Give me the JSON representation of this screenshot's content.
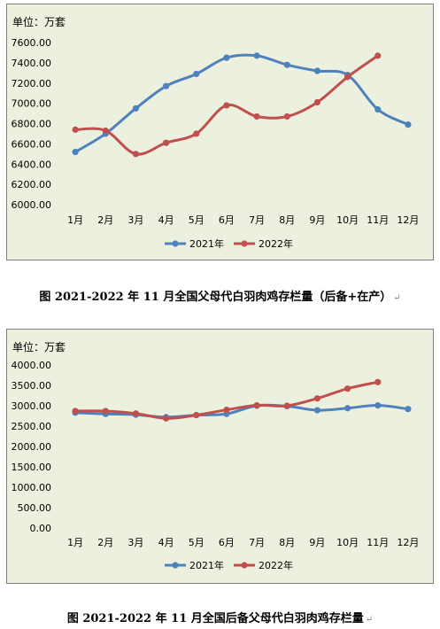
{
  "chart_data": [
    {
      "type": "line",
      "unit_label": "单位：万套",
      "categories": [
        "1月",
        "2月",
        "3月",
        "4月",
        "5月",
        "6月",
        "7月",
        "8月",
        "9月",
        "10月",
        "11月",
        "12月"
      ],
      "ylim": [
        6000,
        7600
      ],
      "yticks": [
        "6000.00",
        "6200.00",
        "6400.00",
        "6600.00",
        "6800.00",
        "7000.00",
        "7200.00",
        "7400.00",
        "7600.00"
      ],
      "ytick_values": [
        6000,
        6200,
        6400,
        6600,
        6800,
        7000,
        7200,
        7400,
        7600
      ],
      "grid": false,
      "legend_position": "bottom",
      "series": [
        {
          "name": "2021年",
          "color": "#4f81bd",
          "values": [
            6520,
            6700,
            6950,
            7170,
            7290,
            7450,
            7470,
            7380,
            7320,
            7280,
            6940,
            6790
          ]
        },
        {
          "name": "2022年",
          "color": "#c0504d",
          "values": [
            6740,
            6730,
            6500,
            6610,
            6700,
            6980,
            6870,
            6870,
            7010,
            7260,
            7470,
            null
          ]
        }
      ],
      "caption": "图    2021-2022 年 11 月全国父母代白羽肉鸡存栏量（后备+在产）"
    },
    {
      "type": "line",
      "unit_label": "单位：万套",
      "categories": [
        "1月",
        "2月",
        "3月",
        "4月",
        "5月",
        "6月",
        "7月",
        "8月",
        "9月",
        "10月",
        "11月",
        "12月"
      ],
      "ylim": [
        0,
        4000
      ],
      "yticks": [
        "0.00",
        "500.00",
        "1000.00",
        "1500.00",
        "2000.00",
        "2500.00",
        "3000.00",
        "3500.00",
        "4000.00"
      ],
      "ytick_values": [
        0,
        500,
        1000,
        1500,
        2000,
        2500,
        3000,
        3500,
        4000
      ],
      "grid": false,
      "legend_position": "bottom",
      "series": [
        {
          "name": "2021年",
          "color": "#4f81bd",
          "values": [
            2830,
            2800,
            2780,
            2720,
            2770,
            2800,
            3000,
            2990,
            2890,
            2940,
            3010,
            2920
          ]
        },
        {
          "name": "2022年",
          "color": "#c0504d",
          "values": [
            2870,
            2870,
            2810,
            2690,
            2770,
            2900,
            3010,
            3000,
            3180,
            3420,
            3580,
            null
          ]
        }
      ],
      "caption": "图    2021-2022 年 11 月全国后备父母代白羽肉鸡存栏量"
    }
  ]
}
